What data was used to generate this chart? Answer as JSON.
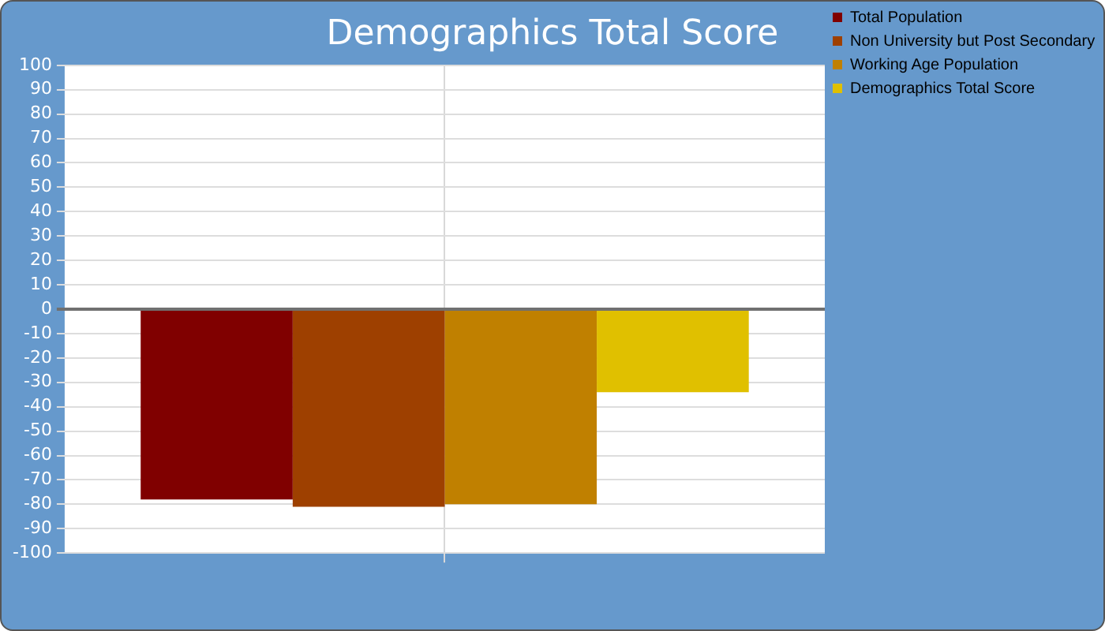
{
  "chart_data": {
    "type": "bar",
    "title": "Demographics Total Score",
    "categories": [
      null
    ],
    "series": [
      {
        "name": "Total Population",
        "color": "#800000",
        "values": [
          -78
        ]
      },
      {
        "name": "Non University but Post Secondary",
        "color": "#9e4000",
        "values": [
          -81
        ]
      },
      {
        "name": "Working Age Population",
        "color": "#c08000",
        "values": [
          -80
        ]
      },
      {
        "name": "Demographics Total Score",
        "color": "#e0c000",
        "values": [
          -34
        ]
      }
    ],
    "ylim": [
      -100,
      100
    ],
    "yticks": [
      -100,
      -90,
      -80,
      -70,
      -60,
      -50,
      -40,
      -30,
      -20,
      -10,
      0,
      10,
      20,
      30,
      40,
      50,
      60,
      70,
      80,
      90,
      100
    ],
    "grid": true,
    "legend": "right"
  }
}
